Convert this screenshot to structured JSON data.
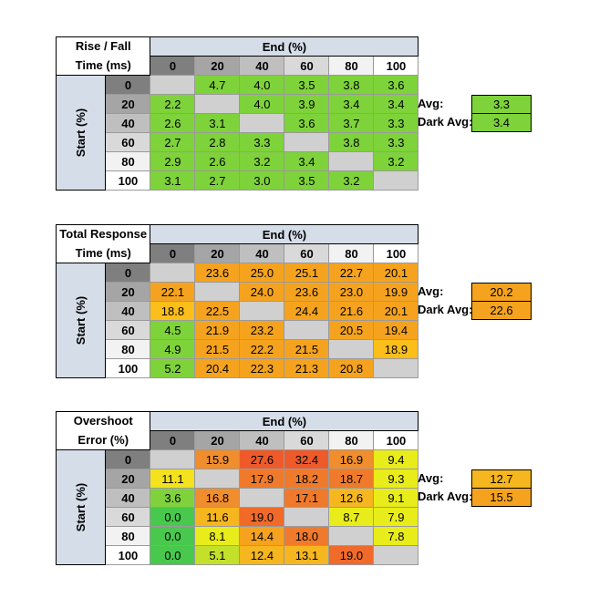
{
  "chart_data": [
    {
      "type": "table",
      "title_lines": [
        "Rise / Fall",
        "Time (ms)"
      ],
      "col_header": "End (%)",
      "row_header": "Start (%)",
      "columns": [
        "0",
        "20",
        "40",
        "60",
        "80",
        "100"
      ],
      "rows": [
        "0",
        "20",
        "40",
        "60",
        "80",
        "100"
      ],
      "values": [
        [
          "",
          "4.7",
          "4.0",
          "3.5",
          "3.8",
          "3.6"
        ],
        [
          "2.2",
          "",
          "4.0",
          "3.9",
          "3.4",
          "3.4"
        ],
        [
          "2.6",
          "3.1",
          "",
          "3.6",
          "3.7",
          "3.3"
        ],
        [
          "2.7",
          "2.8",
          "3.3",
          "",
          "3.8",
          "3.3"
        ],
        [
          "2.9",
          "2.6",
          "3.2",
          "3.4",
          "",
          "3.2"
        ],
        [
          "3.1",
          "2.7",
          "3.0",
          "3.5",
          "3.2",
          ""
        ]
      ],
      "colors": [
        [
          "gray",
          "green",
          "green",
          "green",
          "green",
          "green"
        ],
        [
          "green",
          "gray",
          "green",
          "green",
          "green",
          "green"
        ],
        [
          "green",
          "green",
          "gray",
          "green",
          "green",
          "green"
        ],
        [
          "green",
          "green",
          "green",
          "gray",
          "green",
          "green"
        ],
        [
          "green",
          "green",
          "green",
          "green",
          "gray",
          "green"
        ],
        [
          "green",
          "green",
          "green",
          "green",
          "green",
          "gray"
        ]
      ],
      "avg_label": "Avg:",
      "avg_value": "3.3",
      "avg_color": "green",
      "dark_avg_label": "Dark Avg:",
      "dark_avg_value": "3.4",
      "dark_avg_color": "green"
    },
    {
      "type": "table",
      "title_lines": [
        "Total Response",
        "Time (ms)"
      ],
      "col_header": "End (%)",
      "row_header": "Start (%)",
      "columns": [
        "0",
        "20",
        "40",
        "60",
        "80",
        "100"
      ],
      "rows": [
        "0",
        "20",
        "40",
        "60",
        "80",
        "100"
      ],
      "values": [
        [
          "",
          "23.6",
          "25.0",
          "25.1",
          "22.7",
          "20.1"
        ],
        [
          "22.1",
          "",
          "24.0",
          "23.6",
          "23.0",
          "19.9"
        ],
        [
          "18.8",
          "22.5",
          "",
          "24.4",
          "21.6",
          "20.1"
        ],
        [
          "4.5",
          "21.9",
          "23.2",
          "",
          "20.5",
          "19.4"
        ],
        [
          "4.9",
          "21.5",
          "22.2",
          "21.5",
          "",
          "18.9"
        ],
        [
          "5.2",
          "20.4",
          "22.3",
          "21.3",
          "20.8",
          ""
        ]
      ],
      "colors": [
        [
          "gray",
          "orange",
          "orange",
          "orange",
          "orange",
          "orange"
        ],
        [
          "orange",
          "gray",
          "orange",
          "orange",
          "orange",
          "orange"
        ],
        [
          "amber",
          "orange",
          "gray",
          "orange",
          "orange",
          "orange"
        ],
        [
          "green",
          "orange",
          "orange",
          "gray",
          "orange",
          "orange"
        ],
        [
          "green",
          "orange",
          "orange",
          "orange",
          "gray",
          "amber"
        ],
        [
          "green",
          "orange",
          "orange",
          "orange",
          "orange",
          "gray"
        ]
      ],
      "avg_label": "Avg:",
      "avg_value": "20.2",
      "avg_color": "orange",
      "dark_avg_label": "Dark Avg:",
      "dark_avg_value": "22.6",
      "dark_avg_color": "orange"
    },
    {
      "type": "table",
      "title_lines": [
        "Overshoot",
        "Error (%)"
      ],
      "col_header": "End (%)",
      "row_header": "Start (%)",
      "columns": [
        "0",
        "20",
        "40",
        "60",
        "80",
        "100"
      ],
      "rows": [
        "0",
        "20",
        "40",
        "60",
        "80",
        "100"
      ],
      "values": [
        [
          "",
          "15.9",
          "27.6",
          "32.4",
          "16.9",
          "9.4"
        ],
        [
          "11.1",
          "",
          "17.9",
          "18.2",
          "18.7",
          "9.3"
        ],
        [
          "3.6",
          "16.8",
          "",
          "17.1",
          "12.6",
          "9.1"
        ],
        [
          "0.0",
          "11.6",
          "19.0",
          "",
          "8.7",
          "7.9"
        ],
        [
          "0.0",
          "8.1",
          "14.4",
          "18.0",
          "",
          "7.8"
        ],
        [
          "0.0",
          "5.1",
          "12.4",
          "13.1",
          "19.0",
          ""
        ]
      ],
      "colors": [
        [
          "gray",
          "o-orange",
          "o-red",
          "o-red",
          "o-orange",
          "o-yellow"
        ],
        [
          "o-yellowgold",
          "gray",
          "o-orangered",
          "o-orangered",
          "o-orangered",
          "o-yellow"
        ],
        [
          "o-lightgreen",
          "o-orange",
          "gray",
          "o-orangered",
          "o-gold",
          "o-yellow"
        ],
        [
          "o-green",
          "o-gold",
          "o-red2",
          "gray",
          "o-yellow",
          "o-yellow"
        ],
        [
          "o-green",
          "o-yellow",
          "o-amber",
          "o-orangered",
          "gray",
          "o-yellow"
        ],
        [
          "o-green",
          "o-yellowgreen",
          "o-gold",
          "o-gold",
          "o-red2",
          "gray"
        ]
      ],
      "avg_label": "Avg:",
      "avg_value": "12.7",
      "avg_color": "o-gold",
      "dark_avg_label": "Dark Avg:",
      "dark_avg_value": "15.5",
      "dark_avg_color": "o-amber"
    }
  ],
  "palette": {
    "gray": "#d0d0d0",
    "green": "#7ed23a",
    "orange": "#f5a31e",
    "amber": "#fbbe1a",
    "o-orange": "#f08d2c",
    "o-red": "#ee5a2a",
    "o-red2": "#f06a2a",
    "o-orangered": "#f07a2b",
    "o-yellow": "#e8ec1a",
    "o-yellowgold": "#f3e21d",
    "o-yellowgreen": "#c3e12a",
    "o-lightgreen": "#7fd23b",
    "o-green": "#48c84c",
    "o-gold": "#f5b61f",
    "o-amber": "#f5a21f"
  },
  "header_colors": {
    "col_bg": [
      "#7f7f7f",
      "#a5a5a5",
      "#bfbfbf",
      "#d9d9d9",
      "#f2f2f2",
      "#ffffff"
    ],
    "row_bg": [
      "#7f7f7f",
      "#a5a5a5",
      "#bfbfbf",
      "#d9d9d9",
      "#f2f2f2",
      "#ffffff"
    ]
  }
}
